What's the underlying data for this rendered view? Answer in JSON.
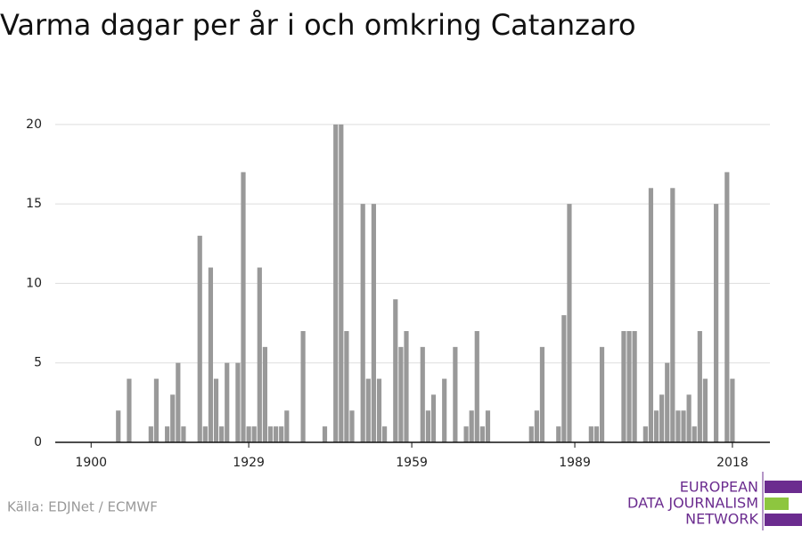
{
  "chart_data": {
    "type": "bar",
    "title": "Varma dagar per år i och omkring Catanzaro",
    "x": [
      1900,
      1901,
      1902,
      1903,
      1904,
      1905,
      1906,
      1907,
      1908,
      1909,
      1910,
      1911,
      1912,
      1913,
      1914,
      1915,
      1916,
      1917,
      1918,
      1919,
      1920,
      1921,
      1922,
      1923,
      1924,
      1925,
      1926,
      1927,
      1928,
      1929,
      1930,
      1931,
      1932,
      1933,
      1934,
      1935,
      1936,
      1937,
      1938,
      1939,
      1940,
      1941,
      1942,
      1943,
      1944,
      1945,
      1946,
      1947,
      1948,
      1949,
      1950,
      1951,
      1952,
      1953,
      1954,
      1955,
      1956,
      1957,
      1958,
      1959,
      1960,
      1961,
      1962,
      1963,
      1964,
      1965,
      1966,
      1967,
      1968,
      1969,
      1970,
      1971,
      1972,
      1973,
      1974,
      1975,
      1976,
      1977,
      1978,
      1979,
      1980,
      1981,
      1982,
      1983,
      1984,
      1985,
      1986,
      1987,
      1988,
      1989,
      1990,
      1991,
      1992,
      1993,
      1994,
      1995,
      1996,
      1997,
      1998,
      1999,
      2000,
      2001,
      2002,
      2003,
      2004,
      2005,
      2006,
      2007,
      2008,
      2009,
      2010,
      2011,
      2012,
      2013,
      2014,
      2015,
      2016,
      2017,
      2018
    ],
    "values": [
      0,
      0,
      0,
      0,
      0,
      2,
      0,
      4,
      0,
      0,
      0,
      1,
      4,
      0,
      1,
      3,
      5,
      1,
      0,
      0,
      13,
      1,
      11,
      4,
      1,
      5,
      0,
      5,
      17,
      1,
      1,
      11,
      6,
      1,
      1,
      1,
      2,
      0,
      0,
      7,
      0,
      0,
      0,
      1,
      0,
      20,
      20,
      7,
      2,
      0,
      15,
      4,
      15,
      4,
      1,
      0,
      9,
      6,
      7,
      0,
      0,
      6,
      2,
      3,
      0,
      4,
      0,
      6,
      0,
      1,
      2,
      7,
      1,
      2,
      0,
      0,
      0,
      0,
      0,
      0,
      0,
      1,
      2,
      6,
      0,
      0,
      1,
      8,
      15,
      0,
      0,
      0,
      1,
      1,
      6,
      0,
      0,
      0,
      7,
      7,
      7,
      0,
      1,
      16,
      2,
      3,
      5,
      16,
      2,
      2,
      3,
      1,
      7,
      4,
      0,
      15,
      0,
      17,
      4
    ],
    "color": "#999999",
    "xlim": [
      1893.4,
      2024.9
    ],
    "xticks": [
      1900,
      1929,
      1959,
      1989,
      2018
    ],
    "ylim": [
      0,
      21
    ],
    "yticks": [
      0,
      5,
      10,
      15,
      20
    ],
    "grid": true,
    "source": "Källa: EDJNet / ECMWF",
    "logo": [
      "EUROPEAN",
      "DATA JOURNALISM",
      "NETWORK"
    ]
  }
}
